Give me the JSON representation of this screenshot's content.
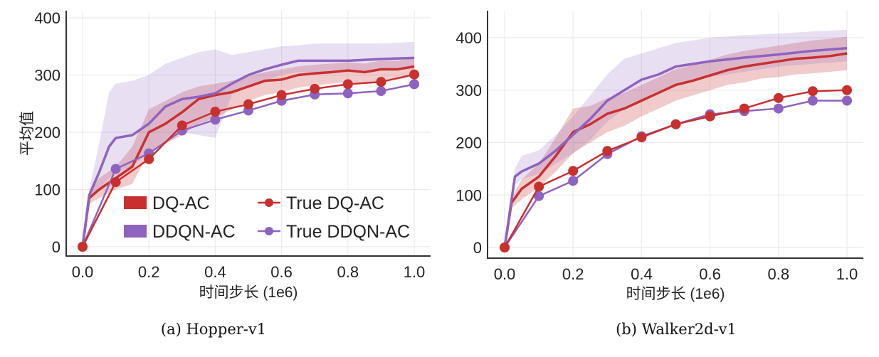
{
  "colors": {
    "DQ-AC": "#c8302f",
    "DDQN-AC": "#8e63c0"
  },
  "legend": [
    "DQ-AC",
    "DDQN-AC",
    "True DQ-AC",
    "True DDQN-AC"
  ],
  "chart_data": [
    {
      "type": "line",
      "caption": "(a) Hopper-v1",
      "xlabel": "时间步长 (1e6)",
      "ylabel": "平均值",
      "xlim": [
        0,
        1
      ],
      "ylim": [
        0,
        400
      ],
      "xticks": [
        "0.0",
        "0.2",
        "0.4",
        "0.6",
        "0.8",
        "1.0"
      ],
      "yticks": [
        "0",
        "100",
        "200",
        "300",
        "400"
      ],
      "grid": true,
      "legend_position": "lower-right",
      "series": [
        {
          "name": "DQ-AC",
          "style": "band",
          "x": [
            0,
            0.02,
            0.05,
            0.1,
            0.15,
            0.2,
            0.25,
            0.3,
            0.35,
            0.4,
            0.45,
            0.5,
            0.55,
            0.6,
            0.65,
            0.7,
            0.75,
            0.8,
            0.85,
            0.9,
            0.95,
            1.0
          ],
          "mean": [
            0,
            85,
            100,
            120,
            140,
            200,
            215,
            235,
            258,
            265,
            270,
            280,
            290,
            292,
            300,
            303,
            305,
            308,
            305,
            310,
            310,
            315
          ],
          "lo": [
            0,
            75,
            85,
            100,
            110,
            165,
            180,
            195,
            215,
            225,
            240,
            255,
            265,
            270,
            278,
            282,
            285,
            288,
            285,
            290,
            292,
            298
          ],
          "hi": [
            0,
            95,
            120,
            140,
            175,
            240,
            255,
            270,
            280,
            285,
            290,
            298,
            305,
            310,
            315,
            318,
            320,
            322,
            320,
            325,
            325,
            330
          ]
        },
        {
          "name": "DDQN-AC",
          "style": "band",
          "x": [
            0,
            0.02,
            0.05,
            0.08,
            0.1,
            0.15,
            0.2,
            0.25,
            0.3,
            0.35,
            0.4,
            0.45,
            0.5,
            0.55,
            0.6,
            0.65,
            0.7,
            0.8,
            0.9,
            1.0
          ],
          "mean": [
            0,
            90,
            130,
            175,
            190,
            195,
            215,
            245,
            258,
            262,
            268,
            285,
            300,
            310,
            318,
            325,
            325,
            325,
            328,
            330
          ],
          "lo": [
            0,
            80,
            100,
            120,
            130,
            140,
            165,
            185,
            200,
            195,
            190,
            265,
            280,
            290,
            300,
            305,
            305,
            305,
            308,
            310
          ],
          "hi": [
            0,
            100,
            180,
            270,
            285,
            290,
            300,
            320,
            330,
            340,
            345,
            335,
            340,
            345,
            350,
            352,
            355,
            355,
            355,
            358
          ]
        },
        {
          "name": "True DQ-AC",
          "style": "markers",
          "x": [
            0,
            0.1,
            0.2,
            0.3,
            0.4,
            0.5,
            0.6,
            0.7,
            0.8,
            0.9,
            1.0
          ],
          "y": [
            0,
            113,
            153,
            212,
            236,
            249,
            265,
            276,
            284,
            288,
            301
          ]
        },
        {
          "name": "True DDQN-AC",
          "style": "markers",
          "x": [
            0,
            0.1,
            0.2,
            0.3,
            0.4,
            0.5,
            0.6,
            0.7,
            0.8,
            0.9,
            1.0
          ],
          "y": [
            0,
            136,
            163,
            203,
            222,
            238,
            255,
            266,
            268,
            272,
            284
          ]
        }
      ]
    },
    {
      "type": "line",
      "caption": "(b) Walker2d-v1",
      "xlabel": "时间步长 (1e6)",
      "ylabel": "",
      "xlim": [
        0,
        1
      ],
      "ylim": [
        0,
        450
      ],
      "xticks": [
        "0.0",
        "0.2",
        "0.4",
        "0.6",
        "0.8",
        "1.0"
      ],
      "yticks": [
        "0",
        "100",
        "200",
        "300",
        "400"
      ],
      "grid": true,
      "series": [
        {
          "name": "DQ-AC",
          "style": "band",
          "x": [
            0,
            0.02,
            0.05,
            0.1,
            0.15,
            0.2,
            0.25,
            0.3,
            0.35,
            0.4,
            0.45,
            0.5,
            0.55,
            0.6,
            0.65,
            0.7,
            0.75,
            0.8,
            0.85,
            0.9,
            0.95,
            1.0
          ],
          "mean": [
            0,
            85,
            112,
            135,
            175,
            220,
            235,
            255,
            265,
            280,
            295,
            310,
            318,
            328,
            338,
            345,
            350,
            355,
            360,
            362,
            365,
            370
          ],
          "lo": [
            0,
            75,
            92,
            115,
            145,
            180,
            200,
            220,
            232,
            250,
            265,
            280,
            290,
            300,
            310,
            315,
            322,
            325,
            330,
            332,
            335,
            338
          ],
          "hi": [
            0,
            95,
            130,
            160,
            210,
            265,
            270,
            285,
            295,
            310,
            325,
            340,
            348,
            358,
            368,
            375,
            380,
            385,
            390,
            395,
            398,
            402
          ]
        },
        {
          "name": "DDQN-AC",
          "style": "band",
          "x": [
            0,
            0.03,
            0.05,
            0.1,
            0.15,
            0.2,
            0.25,
            0.3,
            0.35,
            0.4,
            0.45,
            0.5,
            0.55,
            0.6,
            0.7,
            0.8,
            0.9,
            1.0
          ],
          "mean": [
            0,
            135,
            145,
            160,
            185,
            215,
            245,
            280,
            300,
            320,
            330,
            345,
            350,
            355,
            362,
            368,
            375,
            380
          ],
          "lo": [
            0,
            120,
            130,
            140,
            160,
            180,
            205,
            240,
            265,
            280,
            295,
            310,
            320,
            325,
            335,
            345,
            350,
            355
          ],
          "hi": [
            0,
            150,
            175,
            185,
            215,
            250,
            290,
            330,
            360,
            370,
            380,
            390,
            395,
            400,
            405,
            408,
            412,
            415
          ]
        },
        {
          "name": "True DQ-AC",
          "style": "markers",
          "x": [
            0,
            0.1,
            0.2,
            0.3,
            0.4,
            0.5,
            0.6,
            0.7,
            0.8,
            0.9,
            1.0
          ],
          "y": [
            0,
            116,
            146,
            184,
            210,
            235,
            250,
            265,
            285,
            298,
            300
          ]
        },
        {
          "name": "True DDQN-AC",
          "style": "markers",
          "x": [
            0,
            0.1,
            0.2,
            0.3,
            0.4,
            0.5,
            0.6,
            0.7,
            0.8,
            0.9,
            1.0
          ],
          "y": [
            0,
            98,
            127,
            178,
            212,
            235,
            254,
            260,
            265,
            280,
            280
          ]
        }
      ]
    }
  ]
}
